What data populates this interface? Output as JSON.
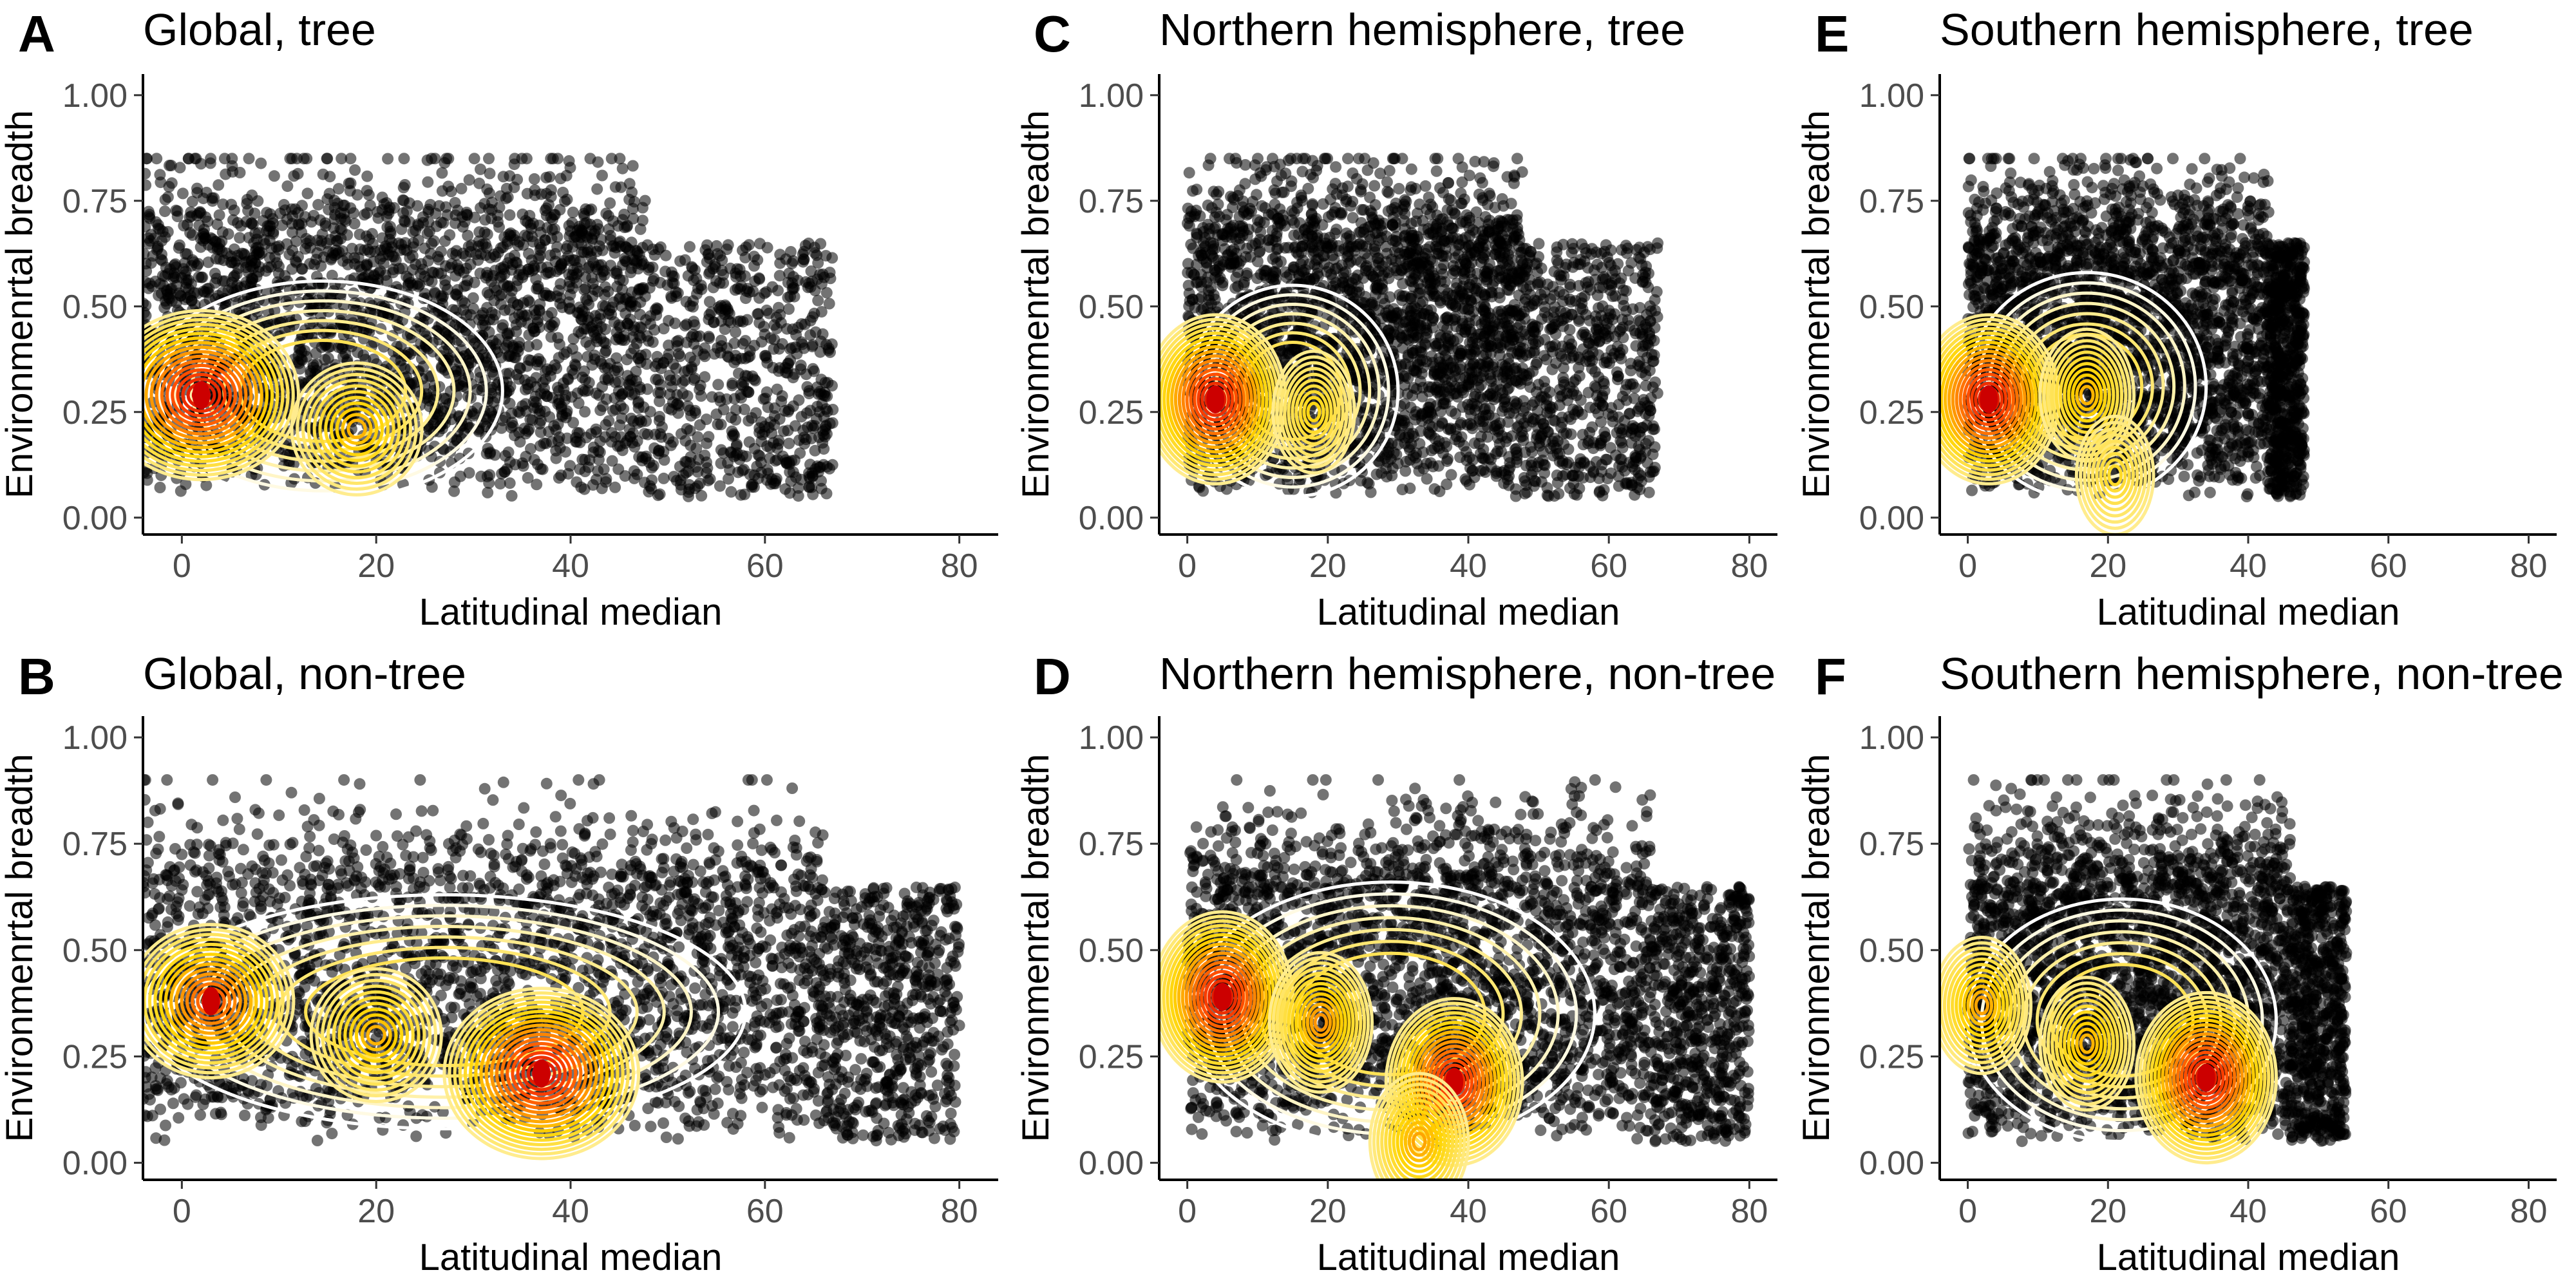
{
  "figure": {
    "panels": [
      {
        "letter": "A",
        "title": "Global, tree"
      },
      {
        "letter": "C",
        "title": "Northern hemisphere, tree"
      },
      {
        "letter": "E",
        "title": "Southern hemisphere, tree"
      },
      {
        "letter": "B",
        "title": "Global, non-tree"
      },
      {
        "letter": "D",
        "title": "Northern hemisphere, non-tree"
      },
      {
        "letter": "F",
        "title": "Southern hemisphere, non-tree"
      }
    ]
  },
  "chart_data": [
    {
      "type": "scatter",
      "overlay": "2d-density-contours",
      "panel": "A",
      "title": "Global, tree",
      "xlabel": "Latitudinal median",
      "ylabel": "Environmenrtal breadth",
      "xlim": [
        -4,
        84
      ],
      "ylim": [
        -0.04,
        1.05
      ],
      "xticks": [
        0,
        20,
        40,
        60,
        80
      ],
      "yticks": [
        0.0,
        0.25,
        0.5,
        0.75,
        1.0
      ],
      "point_cloud": {
        "x_range": [
          -4,
          67
        ],
        "y_range": [
          0.02,
          0.85
        ],
        "dense_x_max": 48
      },
      "density_peaks": [
        {
          "x": 2,
          "y": 0.29,
          "weight": 1.0
        },
        {
          "x": 18,
          "y": 0.21,
          "weight": 0.45
        }
      ],
      "density_extent": {
        "x": [
          -4,
          33
        ],
        "y": [
          0.04,
          0.56
        ]
      }
    },
    {
      "type": "scatter",
      "overlay": "2d-density-contours",
      "panel": "C",
      "title": "Northern hemisphere, tree",
      "xlabel": "Latitudinal median",
      "ylabel": "Environmenrtal breadth",
      "xlim": [
        -4,
        84
      ],
      "ylim": [
        -0.04,
        1.05
      ],
      "xticks": [
        0,
        20,
        40,
        60,
        80
      ],
      "yticks": [
        0.0,
        0.25,
        0.5,
        0.75,
        1.0
      ],
      "point_cloud": {
        "x_range": [
          0,
          67
        ],
        "y_range": [
          0.02,
          0.85
        ],
        "dense_x_max": 48
      },
      "density_peaks": [
        {
          "x": 4,
          "y": 0.28,
          "weight": 1.0
        },
        {
          "x": 18,
          "y": 0.25,
          "weight": 0.3
        }
      ],
      "density_extent": {
        "x": [
          0,
          30
        ],
        "y": [
          0.05,
          0.55
        ]
      }
    },
    {
      "type": "scatter",
      "overlay": "2d-density-contours",
      "panel": "E",
      "title": "Southern hemisphere, tree",
      "xlabel": "Latitudinal median",
      "ylabel": "Environmenrtal breadth",
      "xlim": [
        -4,
        84
      ],
      "ylim": [
        -0.04,
        1.05
      ],
      "xticks": [
        0,
        20,
        40,
        60,
        80
      ],
      "yticks": [
        0.0,
        0.25,
        0.5,
        0.75,
        1.0
      ],
      "point_cloud": {
        "x_range": [
          0,
          48
        ],
        "y_range": [
          0.02,
          0.85
        ],
        "dense_x_max": 43
      },
      "density_peaks": [
        {
          "x": 3,
          "y": 0.28,
          "weight": 1.0
        },
        {
          "x": 17,
          "y": 0.29,
          "weight": 0.45
        },
        {
          "x": 21,
          "y": 0.1,
          "weight": 0.25
        }
      ],
      "density_extent": {
        "x": [
          0,
          34
        ],
        "y": [
          0.04,
          0.58
        ]
      }
    },
    {
      "type": "scatter",
      "overlay": "2d-density-contours",
      "panel": "B",
      "title": "Global, non-tree",
      "xlabel": "Latitudinal median",
      "ylabel": "Environmenrtal breadth",
      "xlim": [
        -4,
        84
      ],
      "ylim": [
        -0.04,
        1.05
      ],
      "xticks": [
        0,
        20,
        40,
        60,
        80
      ],
      "yticks": [
        0.0,
        0.25,
        0.5,
        0.75,
        1.0
      ],
      "point_cloud": {
        "x_range": [
          -4,
          80
        ],
        "y_range": [
          0.02,
          0.9
        ],
        "dense_x_max": 66
      },
      "density_peaks": [
        {
          "x": 37,
          "y": 0.21,
          "weight": 1.0
        },
        {
          "x": 3,
          "y": 0.38,
          "weight": 0.75
        },
        {
          "x": 20,
          "y": 0.3,
          "weight": 0.45
        }
      ],
      "density_extent": {
        "x": [
          -4,
          58
        ],
        "y": [
          0.08,
          0.63
        ]
      }
    },
    {
      "type": "scatter",
      "overlay": "2d-density-contours",
      "panel": "D",
      "title": "Northern hemisphere, non-tree",
      "xlabel": "Latitudinal median",
      "ylabel": "Environmenrtal breadth",
      "xlim": [
        -4,
        84
      ],
      "ylim": [
        -0.04,
        1.05
      ],
      "xticks": [
        0,
        20,
        40,
        60,
        80
      ],
      "yticks": [
        0.0,
        0.25,
        0.5,
        0.75,
        1.0
      ],
      "point_cloud": {
        "x_range": [
          0,
          80
        ],
        "y_range": [
          0.02,
          0.9
        ],
        "dense_x_max": 66
      },
      "density_peaks": [
        {
          "x": 5,
          "y": 0.39,
          "weight": 1.0
        },
        {
          "x": 38,
          "y": 0.19,
          "weight": 0.95
        },
        {
          "x": 19,
          "y": 0.33,
          "weight": 0.55
        },
        {
          "x": 33,
          "y": 0.05,
          "weight": 0.5
        }
      ],
      "density_extent": {
        "x": [
          0,
          58
        ],
        "y": [
          0.04,
          0.66
        ]
      }
    },
    {
      "type": "scatter",
      "overlay": "2d-density-contours",
      "panel": "F",
      "title": "Southern hemisphere, non-tree",
      "xlabel": "Latitudinal median",
      "ylabel": "Environmenrtal breadth",
      "xlim": [
        -4,
        84
      ],
      "ylim": [
        -0.04,
        1.05
      ],
      "xticks": [
        0,
        20,
        40,
        60,
        80
      ],
      "yticks": [
        0.0,
        0.25,
        0.5,
        0.75,
        1.0
      ],
      "point_cloud": {
        "x_range": [
          0,
          54
        ],
        "y_range": [
          0.02,
          0.9
        ],
        "dense_x_max": 46
      },
      "density_peaks": [
        {
          "x": 34,
          "y": 0.2,
          "weight": 1.0
        },
        {
          "x": 2,
          "y": 0.37,
          "weight": 0.5
        },
        {
          "x": 17,
          "y": 0.28,
          "weight": 0.45
        }
      ],
      "density_extent": {
        "x": [
          0,
          44
        ],
        "y": [
          0.05,
          0.62
        ]
      }
    }
  ],
  "colors": {
    "points": "#000000",
    "contour_low": "#ffffff",
    "contour_mid": "#ffd400",
    "contour_high": "#ff4500",
    "peak": "#cc0000"
  }
}
